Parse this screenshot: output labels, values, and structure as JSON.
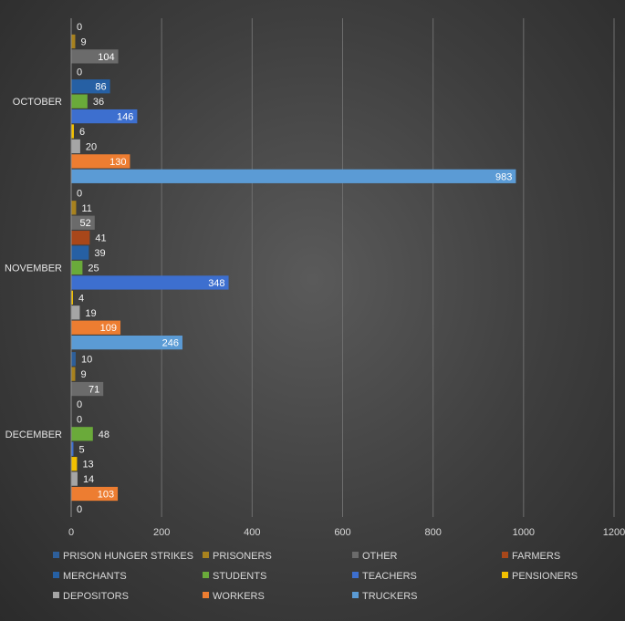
{
  "chart_data": {
    "type": "bar",
    "orientation": "horizontal",
    "title": "",
    "xlabel": "",
    "ylabel": "",
    "xlim": [
      0,
      1200
    ],
    "xticks": [
      0,
      200,
      400,
      600,
      800,
      1000,
      1200
    ],
    "grid": true,
    "legend_position": "bottom",
    "categories": [
      "OCTOBER",
      "NOVEMBER",
      "DECEMBER"
    ],
    "series": [
      {
        "name": "PRISON HUNGER STRIKES",
        "color": "#2e5f9a",
        "values": [
          0,
          0,
          10
        ]
      },
      {
        "name": "PRISONERS",
        "color": "#a8821e",
        "values": [
          9,
          11,
          9
        ]
      },
      {
        "name": "OTHER",
        "color": "#6b6b6b",
        "values": [
          104,
          52,
          71
        ]
      },
      {
        "name": "FARMERS",
        "color": "#a8471a",
        "values": [
          0,
          41,
          0
        ]
      },
      {
        "name": "MERCHANTS",
        "color": "#2660a4",
        "values": [
          86,
          39,
          0
        ]
      },
      {
        "name": "STUDENTS",
        "color": "#6aaa3a",
        "values": [
          36,
          25,
          48
        ]
      },
      {
        "name": "TEACHERS",
        "color": "#3d6fcf",
        "values": [
          146,
          348,
          5
        ]
      },
      {
        "name": "PENSIONERS",
        "color": "#f2c000",
        "values": [
          6,
          4,
          13
        ]
      },
      {
        "name": "DEPOSITORS",
        "color": "#a5a5a5",
        "values": [
          20,
          19,
          14
        ]
      },
      {
        "name": "WORKERS",
        "color": "#ed7d31",
        "values": [
          130,
          109,
          103
        ]
      },
      {
        "name": "TRUCKERS",
        "color": "#5b9bd5",
        "values": [
          983,
          246,
          0
        ]
      }
    ]
  }
}
